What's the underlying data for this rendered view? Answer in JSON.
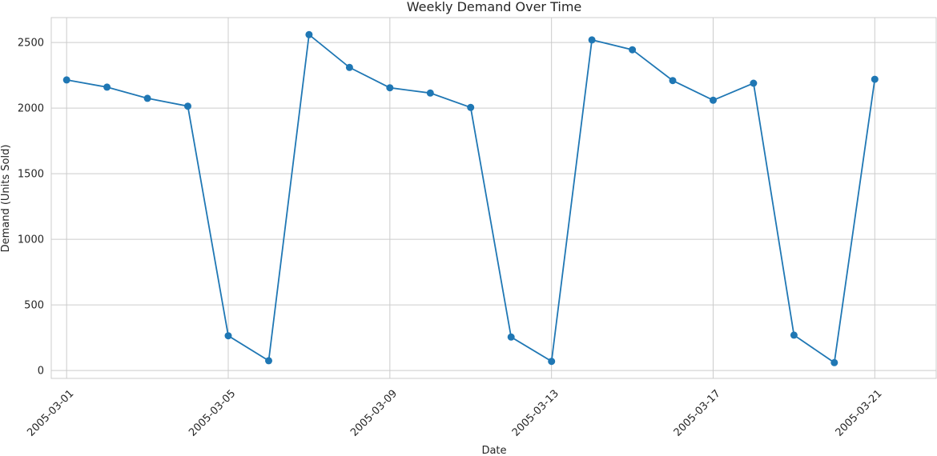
{
  "chart_data": {
    "type": "line",
    "title": "Weekly Demand Over Time",
    "xlabel": "Date",
    "ylabel": "Demand (Units Sold)",
    "x": [
      "2005-03-01",
      "2005-03-02",
      "2005-03-03",
      "2005-03-04",
      "2005-03-05",
      "2005-03-06",
      "2005-03-07",
      "2005-03-08",
      "2005-03-09",
      "2005-03-10",
      "2005-03-11",
      "2005-03-12",
      "2005-03-13",
      "2005-03-14",
      "2005-03-15",
      "2005-03-16",
      "2005-03-17",
      "2005-03-18",
      "2005-03-19",
      "2005-03-20",
      "2005-03-21"
    ],
    "series": [
      {
        "name": "",
        "values": [
          2215,
          2160,
          2075,
          2015,
          265,
          75,
          2560,
          2310,
          2155,
          2115,
          2005,
          255,
          70,
          2520,
          2445,
          2210,
          2060,
          2190,
          270,
          60,
          2220
        ],
        "color": "#1f77b4"
      }
    ],
    "xticks": [
      "2005-03-01",
      "2005-03-05",
      "2005-03-09",
      "2005-03-13",
      "2005-03-17",
      "2005-03-21"
    ],
    "yticks": [
      0,
      500,
      1000,
      1500,
      2000,
      2500
    ],
    "xlim": [
      "2005-02-28",
      "2005-03-22"
    ],
    "ylim": [
      -60,
      2690
    ],
    "grid": true,
    "legend": "none"
  }
}
